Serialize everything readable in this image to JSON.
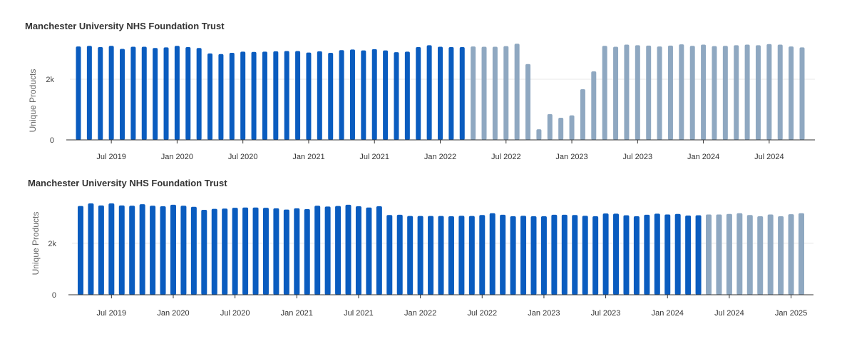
{
  "chart_data": [
    {
      "type": "bar",
      "title": "Manchester University NHS Foundation Trust",
      "xlabel": "",
      "ylabel": "Unique Products",
      "ylim": [
        0,
        3200
      ],
      "yticks": [
        {
          "value": 0,
          "label": "0"
        },
        {
          "value": 2000,
          "label": "2k"
        }
      ],
      "xticks": [
        {
          "date": "2019-07",
          "label": "Jul 2019"
        },
        {
          "date": "2020-01",
          "label": "Jan 2020"
        },
        {
          "date": "2020-07",
          "label": "Jul 2020"
        },
        {
          "date": "2021-01",
          "label": "Jan 2021"
        },
        {
          "date": "2021-07",
          "label": "Jul 2021"
        },
        {
          "date": "2022-01",
          "label": "Jan 2022"
        },
        {
          "date": "2022-07",
          "label": "Jul 2022"
        },
        {
          "date": "2023-01",
          "label": "Jan 2023"
        },
        {
          "date": "2023-07",
          "label": "Jul 2023"
        },
        {
          "date": "2024-01",
          "label": "Jan 2024"
        },
        {
          "date": "2024-07",
          "label": "Jul 2024"
        }
      ],
      "grid": true,
      "legend": "none",
      "colors": {
        "primary": "#0a5cbf",
        "secondary": "#8fa8c1"
      },
      "series": [
        {
          "highlight": "primary",
          "x": [
            "2019-04",
            "2019-05",
            "2019-06",
            "2019-07",
            "2019-08",
            "2019-09",
            "2019-10",
            "2019-11",
            "2019-12",
            "2020-01",
            "2020-02",
            "2020-03",
            "2020-04",
            "2020-05",
            "2020-06",
            "2020-07",
            "2020-08",
            "2020-09",
            "2020-10",
            "2020-11",
            "2020-12",
            "2021-01",
            "2021-02",
            "2021-03",
            "2021-04",
            "2021-05",
            "2021-06",
            "2021-07",
            "2021-08",
            "2021-09",
            "2021-10",
            "2021-11",
            "2021-12",
            "2022-01",
            "2022-02",
            "2022-03"
          ],
          "values": [
            3080,
            3100,
            3060,
            3100,
            3000,
            3070,
            3070,
            3030,
            3050,
            3100,
            3060,
            3030,
            2850,
            2830,
            2870,
            2910,
            2900,
            2910,
            2920,
            2930,
            2930,
            2880,
            2920,
            2870,
            2960,
            2980,
            2950,
            2990,
            2950,
            2890,
            2910,
            3060,
            3120,
            3070,
            3060,
            3060
          ]
        },
        {
          "highlight": "secondary",
          "x": [
            "2022-04",
            "2022-05",
            "2022-06",
            "2022-07",
            "2022-08",
            "2022-09",
            "2022-10",
            "2022-11",
            "2022-12",
            "2023-01",
            "2023-02",
            "2023-03",
            "2023-04",
            "2023-05",
            "2023-06",
            "2023-07",
            "2023-08",
            "2023-09",
            "2023-10",
            "2023-11",
            "2023-12",
            "2024-01",
            "2024-02",
            "2024-03",
            "2024-04",
            "2024-05",
            "2024-06",
            "2024-07",
            "2024-08",
            "2024-09",
            "2024-10"
          ],
          "values": [
            3080,
            3070,
            3070,
            3090,
            3170,
            2500,
            350,
            850,
            730,
            810,
            1670,
            2260,
            3100,
            3070,
            3140,
            3120,
            3110,
            3080,
            3110,
            3150,
            3100,
            3140,
            3090,
            3100,
            3120,
            3140,
            3120,
            3160,
            3140,
            3080,
            3050
          ]
        }
      ]
    },
    {
      "type": "bar",
      "title": "Manchester University NHS Foundation Trust",
      "xlabel": "",
      "ylabel": "Unique Products",
      "ylim": [
        0,
        3800
      ],
      "yticks": [
        {
          "value": 0,
          "label": "0"
        },
        {
          "value": 2000,
          "label": "2k"
        }
      ],
      "xticks": [
        {
          "date": "2019-07",
          "label": "Jul 2019"
        },
        {
          "date": "2020-01",
          "label": "Jan 2020"
        },
        {
          "date": "2020-07",
          "label": "Jul 2020"
        },
        {
          "date": "2021-01",
          "label": "Jan 2021"
        },
        {
          "date": "2021-07",
          "label": "Jul 2021"
        },
        {
          "date": "2022-01",
          "label": "Jan 2022"
        },
        {
          "date": "2022-07",
          "label": "Jul 2022"
        },
        {
          "date": "2023-01",
          "label": "Jan 2023"
        },
        {
          "date": "2023-07",
          "label": "Jul 2023"
        },
        {
          "date": "2024-01",
          "label": "Jan 2024"
        },
        {
          "date": "2024-07",
          "label": "Jul 2024"
        },
        {
          "date": "2025-01",
          "label": "Jan 2025"
        }
      ],
      "grid": true,
      "legend": "none",
      "colors": {
        "primary": "#0a5cbf",
        "secondary": "#8fa8c1"
      },
      "series": [
        {
          "highlight": "primary",
          "x": [
            "2019-04",
            "2019-05",
            "2019-06",
            "2019-07",
            "2019-08",
            "2019-09",
            "2019-10",
            "2019-11",
            "2019-12",
            "2020-01",
            "2020-02",
            "2020-03",
            "2020-04",
            "2020-05",
            "2020-06",
            "2020-07",
            "2020-08",
            "2020-09",
            "2020-10",
            "2020-11",
            "2020-12",
            "2021-01",
            "2021-02",
            "2021-03",
            "2021-04",
            "2021-05",
            "2021-06",
            "2021-07",
            "2021-08",
            "2021-09",
            "2021-10",
            "2021-11",
            "2021-12",
            "2022-01",
            "2022-02",
            "2022-03",
            "2022-04",
            "2022-05",
            "2022-06",
            "2022-07",
            "2022-08",
            "2022-09",
            "2022-10",
            "2022-11",
            "2022-12",
            "2023-01",
            "2023-02",
            "2023-03",
            "2023-04",
            "2023-05",
            "2023-06",
            "2023-07",
            "2023-08",
            "2023-09",
            "2023-10",
            "2023-11",
            "2023-12",
            "2024-01",
            "2024-02",
            "2024-03",
            "2024-04"
          ],
          "values": [
            3450,
            3550,
            3470,
            3550,
            3470,
            3460,
            3520,
            3460,
            3440,
            3500,
            3460,
            3420,
            3300,
            3340,
            3350,
            3380,
            3390,
            3390,
            3380,
            3360,
            3310,
            3360,
            3330,
            3460,
            3430,
            3450,
            3500,
            3440,
            3390,
            3440,
            3100,
            3110,
            3060,
            3060,
            3060,
            3060,
            3050,
            3070,
            3060,
            3100,
            3170,
            3110,
            3050,
            3070,
            3050,
            3050,
            3110,
            3110,
            3100,
            3070,
            3050,
            3160,
            3150,
            3090,
            3050,
            3110,
            3150,
            3120,
            3140,
            3080,
            3090
          ]
        },
        {
          "highlight": "secondary",
          "x": [
            "2024-05",
            "2024-06",
            "2024-07",
            "2024-08",
            "2024-09",
            "2024-10",
            "2024-11",
            "2024-12",
            "2025-01",
            "2025-02"
          ],
          "values": [
            3120,
            3120,
            3140,
            3170,
            3100,
            3050,
            3120,
            3050,
            3130,
            3170
          ]
        }
      ]
    }
  ]
}
